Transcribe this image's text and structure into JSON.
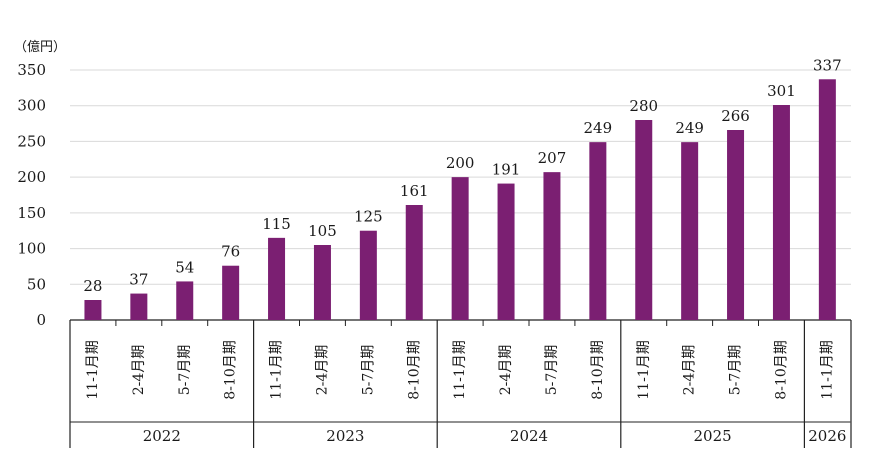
{
  "chart_data": {
    "type": "bar",
    "ylabel": "（億円）",
    "ylim": [
      0,
      350
    ],
    "yticks": [
      0,
      50,
      100,
      150,
      200,
      250,
      300,
      350
    ],
    "grid": true,
    "bar_color": "#7b1f72",
    "groups": [
      {
        "year": "2022",
        "categories": [
          "11-1月期",
          "2-4月期",
          "5-7月期",
          "8-10月期"
        ],
        "values": [
          28,
          37,
          54,
          76
        ]
      },
      {
        "year": "2023",
        "categories": [
          "11-1月期",
          "2-4月期",
          "5-7月期",
          "8-10月期"
        ],
        "values": [
          115,
          105,
          125,
          161
        ]
      },
      {
        "year": "2024",
        "categories": [
          "11-1月期",
          "2-4月期",
          "5-7月期",
          "8-10月期"
        ],
        "values": [
          200,
          191,
          207,
          249
        ]
      },
      {
        "year": "2025",
        "categories": [
          "11-1月期",
          "2-4月期",
          "5-7月期",
          "8-10月期"
        ],
        "values": [
          280,
          249,
          266,
          301
        ]
      },
      {
        "year": "2026",
        "categories": [
          "11-1月期"
        ],
        "values": [
          337
        ]
      }
    ]
  }
}
